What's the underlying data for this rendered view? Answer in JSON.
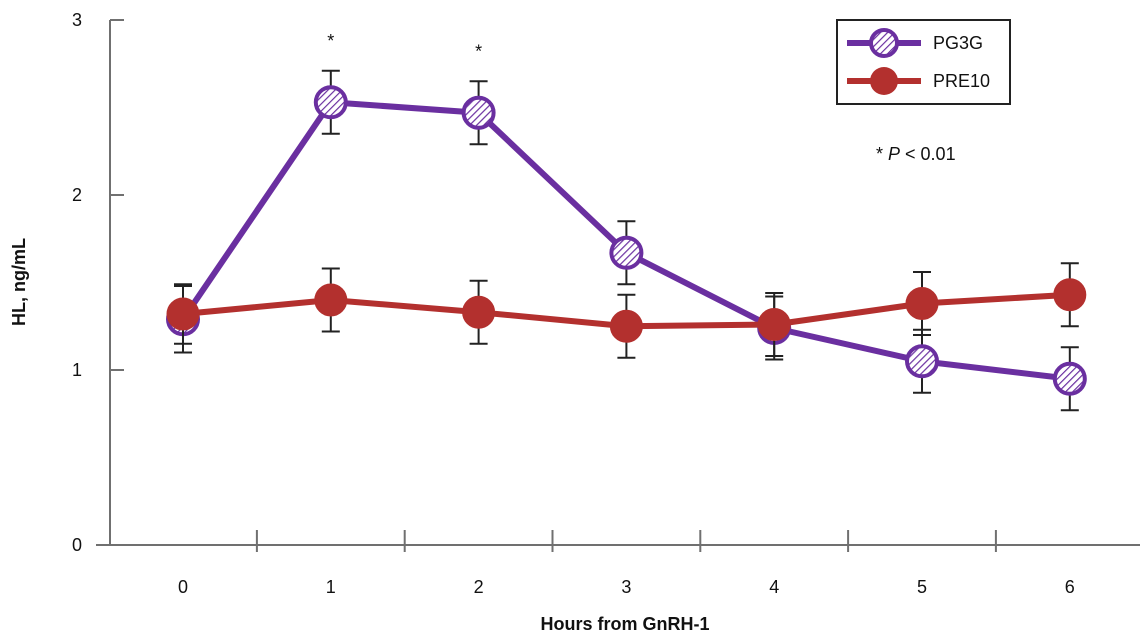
{
  "chart_data": {
    "type": "line",
    "xlabel": "Hours from GnRH-1",
    "ylabel": "HL, ng/mL",
    "x": [
      0,
      1,
      2,
      3,
      4,
      5,
      6
    ],
    "xlim": [
      -0.5,
      6.5
    ],
    "ylim": [
      0,
      3
    ],
    "xticks": [
      "0",
      "1",
      "2",
      "3",
      "4",
      "5",
      "6"
    ],
    "yticks": [
      "0",
      "1",
      "2",
      "3"
    ],
    "grid": false,
    "legend_position": "top-right",
    "series": [
      {
        "name": "PG3G",
        "values": [
          1.29,
          2.53,
          2.47,
          1.67,
          1.24,
          1.05,
          0.95
        ],
        "error": [
          0.19,
          0.18,
          0.18,
          0.18,
          0.18,
          0.18,
          0.18
        ],
        "color": "#6a2fa0",
        "marker": "hatched-circle"
      },
      {
        "name": "PRE10",
        "values": [
          1.32,
          1.4,
          1.33,
          1.25,
          1.26,
          1.38,
          1.43
        ],
        "error": [
          0.17,
          0.18,
          0.18,
          0.18,
          0.18,
          0.18,
          0.18
        ],
        "color": "#b3302e",
        "marker": "filled-circle"
      }
    ],
    "annotations": {
      "significance_marks": [
        {
          "x": 1,
          "text": "*"
        },
        {
          "x": 2,
          "text": "*"
        }
      ],
      "note_prefix": "* ",
      "note_italic": "P",
      "note_suffix": " < 0.01"
    }
  }
}
